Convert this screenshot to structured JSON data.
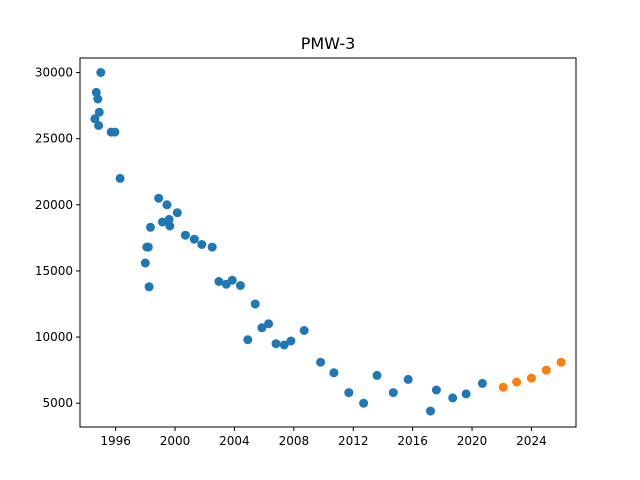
{
  "chart_data": {
    "type": "scatter",
    "title": "PMW-3",
    "xlabel": "",
    "ylabel": "",
    "xlim": [
      1993.6,
      2027.0
    ],
    "ylim": [
      3200,
      31100
    ],
    "grid": false,
    "legend": "none",
    "x_ticks": [
      1996,
      2000,
      2004,
      2008,
      2012,
      2016,
      2020,
      2024
    ],
    "x_tick_labels": [
      "1996",
      "2000",
      "2004",
      "2008",
      "2012",
      "2016",
      "2020",
      "2024"
    ],
    "y_ticks": [
      5000,
      10000,
      15000,
      20000,
      25000,
      30000
    ],
    "y_tick_labels": [
      "5000",
      "10000",
      "15000",
      "20000",
      "25000",
      "30000"
    ],
    "series": [
      {
        "color": "#1f77b4",
        "points": [
          [
            1994.6,
            26500
          ],
          [
            1994.7,
            28500
          ],
          [
            1994.8,
            28000
          ],
          [
            1994.85,
            26000
          ],
          [
            1994.9,
            27000
          ],
          [
            1995.0,
            30000
          ],
          [
            1995.7,
            25500
          ],
          [
            1995.95,
            25500
          ],
          [
            1996.3,
            22000
          ],
          [
            1998.0,
            15600
          ],
          [
            1998.1,
            16800
          ],
          [
            1998.2,
            16800
          ],
          [
            1998.25,
            13800
          ],
          [
            1998.35,
            18300
          ],
          [
            1998.9,
            20500
          ],
          [
            1999.15,
            18700
          ],
          [
            1999.45,
            20000
          ],
          [
            1999.6,
            18900
          ],
          [
            1999.65,
            18400
          ],
          [
            2000.15,
            19400
          ],
          [
            2000.7,
            17700
          ],
          [
            2001.3,
            17400
          ],
          [
            2001.8,
            17000
          ],
          [
            2002.5,
            16800
          ],
          [
            2002.95,
            14200
          ],
          [
            2003.45,
            14000
          ],
          [
            2003.85,
            14300
          ],
          [
            2004.4,
            13900
          ],
          [
            2004.9,
            9800
          ],
          [
            2005.4,
            12500
          ],
          [
            2005.85,
            10700
          ],
          [
            2006.3,
            11000
          ],
          [
            2006.8,
            9500
          ],
          [
            2007.35,
            9400
          ],
          [
            2007.8,
            9700
          ],
          [
            2008.7,
            10500
          ],
          [
            2009.8,
            8100
          ],
          [
            2010.7,
            7300
          ],
          [
            2011.7,
            5800
          ],
          [
            2012.7,
            5000
          ],
          [
            2013.6,
            7100
          ],
          [
            2014.7,
            5800
          ],
          [
            2015.7,
            6800
          ],
          [
            2017.2,
            4400
          ],
          [
            2017.6,
            6000
          ],
          [
            2018.7,
            5400
          ],
          [
            2019.6,
            5700
          ],
          [
            2020.7,
            6500
          ]
        ]
      },
      {
        "color": "#ff7f0e",
        "points": [
          [
            2022.1,
            6200
          ],
          [
            2023.0,
            6600
          ],
          [
            2024.0,
            6900
          ],
          [
            2025.0,
            7500
          ],
          [
            2026.0,
            8100
          ]
        ]
      }
    ]
  }
}
